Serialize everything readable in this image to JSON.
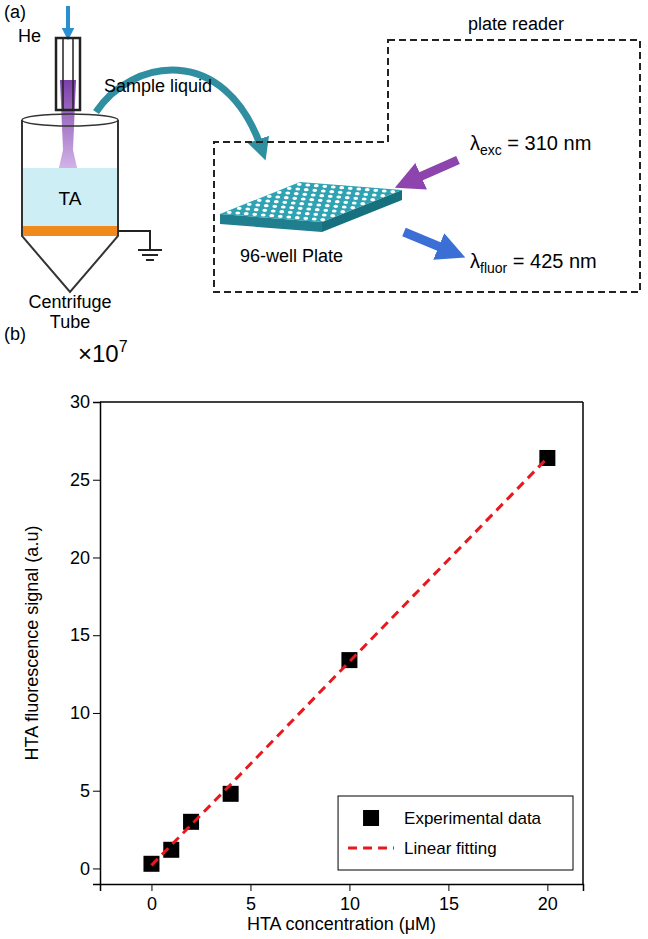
{
  "diagram": {
    "panel_label": "(a)",
    "gas": "He",
    "sample_arrow": "Sample liquid",
    "liquid": "TA",
    "tube": [
      "Centrifuge",
      "Tube"
    ],
    "plate": "96-well Plate",
    "box_title": "plate reader",
    "excitation": {
      "symbol": "λ",
      "sub": "exc",
      "text": " = 310 nm"
    },
    "emission": {
      "symbol": "λ",
      "sub": "fluor",
      "text": " = 425 nm"
    }
  },
  "chart_data": {
    "type": "scatter",
    "panel_label": "(b)",
    "x_label": "HTA concentration (μM)",
    "y_label": "HTA fluorescence signal (a.u)",
    "y_multiplier": {
      "base": "×10",
      "exponent": "7"
    },
    "x": [
      0,
      1,
      2,
      4,
      10,
      20
    ],
    "series": [
      {
        "name": "Experimental data",
        "color": "#000000",
        "marker": "square",
        "values": [
          0.3,
          1.2,
          3.0,
          4.8,
          13.4,
          26.4
        ]
      },
      {
        "name": "Linear fitting",
        "type": "line",
        "color": "#e8191e",
        "line_style": "dashed",
        "values": [
          0.2,
          1.5,
          2.8,
          5.4,
          13.3,
          26.4
        ]
      }
    ],
    "xlim": [
      -2.6,
      21.8
    ],
    "ylim": [
      -1,
      30
    ],
    "xticks": [
      0,
      5,
      10,
      15,
      20
    ],
    "yticks": [
      0,
      5,
      10,
      15,
      20,
      25,
      30
    ],
    "legend": "lower right",
    "grid": false
  }
}
